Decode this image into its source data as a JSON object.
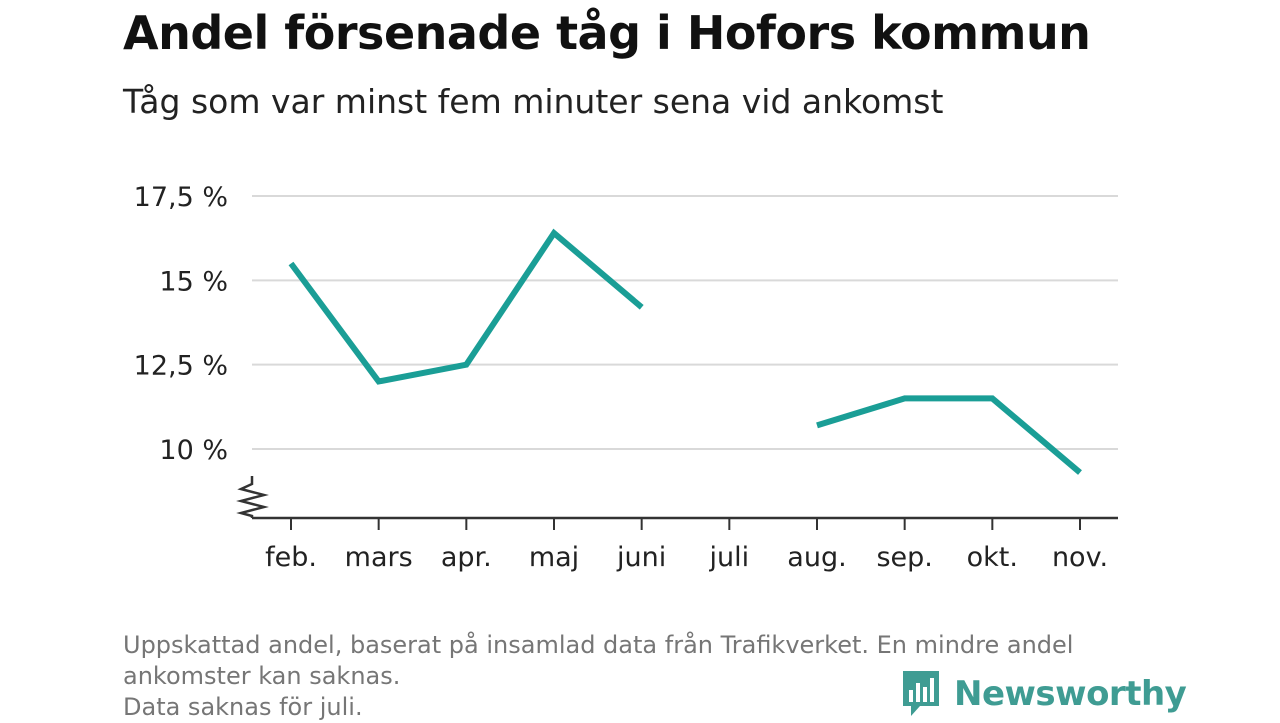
{
  "header": {
    "title": "Andel försenade tåg i Hofors kommun",
    "subtitle": "Tåg som var minst fem minuter sena vid ankomst"
  },
  "footer": {
    "note_line1": "Uppskattad andel, baserat på insamlad data från Trafikverket. En mindre andel",
    "note_line2": "ankomster kan saknas.",
    "note_line3": "Data saknas för juli.",
    "brand": "Newsworthy"
  },
  "colors": {
    "series": "#1a9e96",
    "brand": "#3f9c93",
    "grid": "#d9d9d9",
    "axis": "#333333",
    "note": "#767676"
  },
  "chart_data": {
    "type": "line",
    "categories": [
      "feb.",
      "mars",
      "apr.",
      "maj",
      "juni",
      "juli",
      "aug.",
      "sep.",
      "okt.",
      "nov."
    ],
    "series": [
      {
        "values": [
          15.5,
          12.0,
          12.5,
          16.4,
          14.2,
          null,
          10.7,
          11.5,
          11.5,
          9.3
        ]
      }
    ],
    "yticks": [
      10,
      12.5,
      15,
      17.5
    ],
    "ytick_labels": [
      "10 %",
      "12,5 %",
      "15 %",
      "17,5 %"
    ],
    "ylim": [
      8.0,
      17.5
    ],
    "axis_break": true,
    "grid": true,
    "legend": "none"
  }
}
